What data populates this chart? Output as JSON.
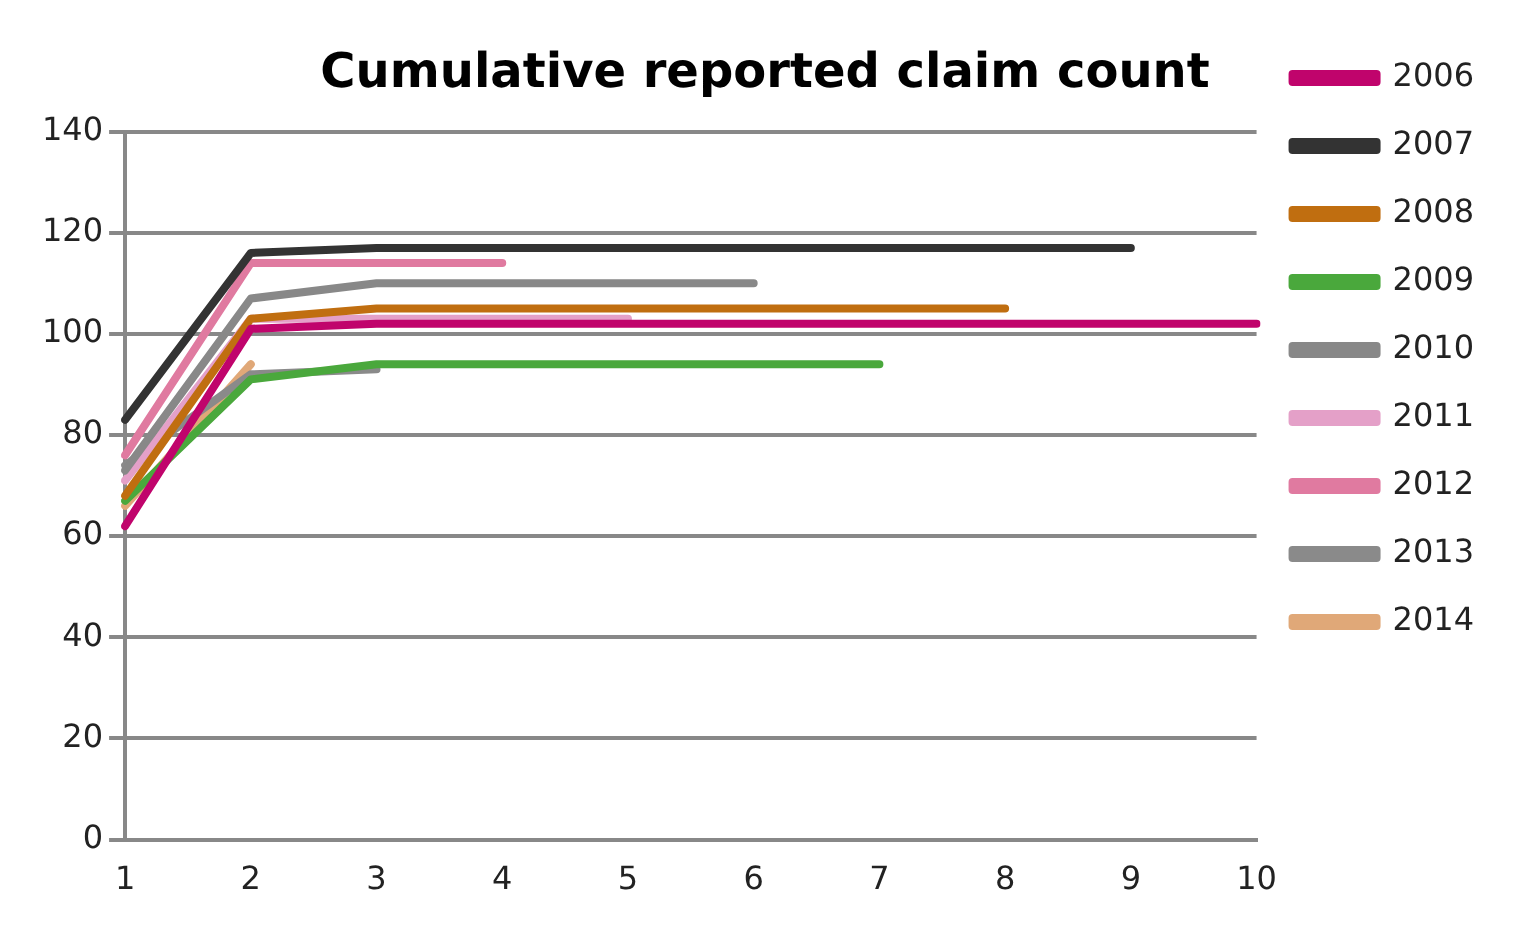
{
  "chart_data": {
    "type": "line",
    "title": "Cumulative reported claim count",
    "categories": [
      "1",
      "2",
      "3",
      "4",
      "5",
      "6",
      "7",
      "8",
      "9",
      "10"
    ],
    "ylim": [
      0,
      140
    ],
    "yticks": [
      0,
      20,
      40,
      60,
      80,
      100,
      120,
      140
    ],
    "grid": "y",
    "legend": "right",
    "marker": "none",
    "line_style": "solid",
    "series": [
      {
        "name": "2006",
        "color": "#c0046c",
        "values": [
          62,
          101,
          102,
          102,
          102,
          102,
          102,
          102,
          102,
          102
        ]
      },
      {
        "name": "2007",
        "color": "#333333",
        "values": [
          83,
          116,
          117,
          117,
          117,
          117,
          117,
          117,
          117,
          null
        ]
      },
      {
        "name": "2008",
        "color": "#c06e10",
        "values": [
          68,
          103,
          105,
          105,
          105,
          105,
          105,
          105,
          null,
          null
        ]
      },
      {
        "name": "2009",
        "color": "#4aa83c",
        "values": [
          67,
          91,
          94,
          94,
          94,
          94,
          94,
          null,
          null,
          null
        ]
      },
      {
        "name": "2010",
        "color": "#888888",
        "values": [
          73,
          107,
          110,
          110,
          110,
          110,
          null,
          null,
          null,
          null
        ]
      },
      {
        "name": "2011",
        "color": "#e4a0c8",
        "values": [
          71,
          103,
          103,
          103,
          103,
          null,
          null,
          null,
          null,
          null
        ]
      },
      {
        "name": "2012",
        "color": "#e07aa0",
        "values": [
          76,
          114,
          114,
          114,
          null,
          null,
          null,
          null,
          null,
          null
        ]
      },
      {
        "name": "2013",
        "color": "#8a8a8a",
        "values": [
          74,
          92,
          93,
          null,
          null,
          null,
          null,
          null,
          null,
          null
        ]
      },
      {
        "name": "2014",
        "color": "#e0a878",
        "values": [
          66,
          94,
          null,
          null,
          null,
          null,
          null,
          null,
          null,
          null
        ]
      }
    ]
  }
}
